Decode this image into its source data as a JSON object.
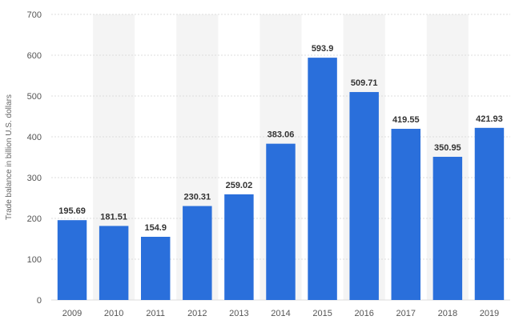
{
  "chart_data": {
    "type": "bar",
    "title": "",
    "xlabel": "",
    "ylabel": "Trade balance in billion U.S. dollars",
    "categories": [
      "2009",
      "2010",
      "2011",
      "2012",
      "2013",
      "2014",
      "2015",
      "2016",
      "2017",
      "2018",
      "2019"
    ],
    "values": [
      195.69,
      181.51,
      154.9,
      230.31,
      259.02,
      383.06,
      593.9,
      509.71,
      419.55,
      350.95,
      421.93
    ],
    "data_labels": [
      "195.69",
      "181.51",
      "154.9",
      "230.31",
      "259.02",
      "383.06",
      "593.9",
      "509.71",
      "419.55",
      "350.95",
      "421.93"
    ],
    "ylim": [
      0,
      700
    ],
    "y_ticks": [
      0,
      100,
      200,
      300,
      400,
      500,
      600,
      700
    ],
    "grid": true,
    "bar_color": "#2a6fdb",
    "band_color": "#f4f4f4",
    "grid_color": "#dddddd"
  }
}
